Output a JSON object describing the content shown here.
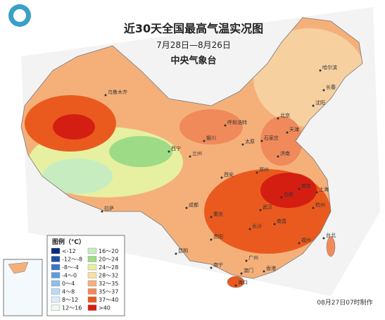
{
  "title": "近30天全国最高气温实况图",
  "subtitle": "7月28日—8月26日",
  "agency": "中央气象台",
  "legend": {
    "title": "图例（℃）",
    "items": [
      {
        "label": "<-12",
        "color": "#0a2a7a"
      },
      {
        "label": "-12～-8",
        "color": "#1f4fa8"
      },
      {
        "label": "-8～-4",
        "color": "#3a74c8"
      },
      {
        "label": "-4～0",
        "color": "#5e9be0"
      },
      {
        "label": "0～4",
        "color": "#8cc0ee"
      },
      {
        "label": "4～8",
        "color": "#b7dcf5"
      },
      {
        "label": "8～12",
        "color": "#d9eefa"
      },
      {
        "label": "12～16",
        "color": "#eef8f0"
      },
      {
        "label": "16～20",
        "color": "#c7ecc0"
      },
      {
        "label": "20～24",
        "color": "#9edb86"
      },
      {
        "label": "24～28",
        "color": "#e6f0a0"
      },
      {
        "label": "28～32",
        "color": "#f7e0a0"
      },
      {
        "label": "32～35",
        "color": "#f5b07a"
      },
      {
        "label": "35～37",
        "color": "#f08a5a"
      },
      {
        "label": "37～40",
        "color": "#ea5a1e"
      },
      {
        "label": ">40",
        "color": "#d51e12"
      }
    ]
  },
  "cities": [
    "哈尔滨",
    "长春",
    "沈阳",
    "乌鲁木齐",
    "呼和浩特",
    "北京",
    "天津",
    "石家庄",
    "太原",
    "银川",
    "兰州",
    "西宁",
    "济南",
    "郑州",
    "西安",
    "拉萨",
    "成都",
    "重庆",
    "武汉",
    "合肥",
    "南京",
    "上海",
    "杭州",
    "长沙",
    "南昌",
    "福州",
    "贵阳",
    "昆明",
    "南宁",
    "广州",
    "香港",
    "澳门",
    "海口",
    "台北"
  ],
  "footer": "08月27日07时制作"
}
